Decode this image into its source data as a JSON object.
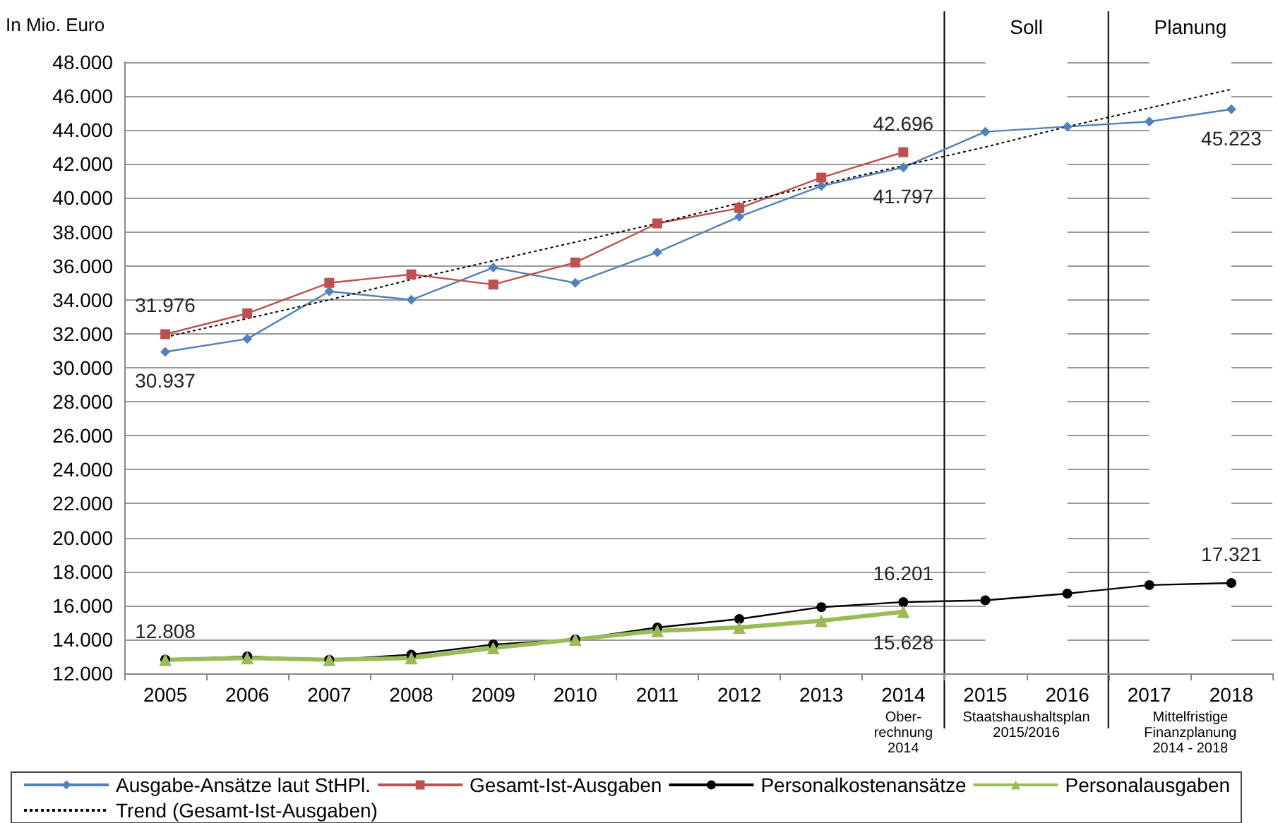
{
  "chart_data": {
    "type": "line",
    "ylabel": "In Mio. Euro",
    "categories": [
      "2005",
      "2006",
      "2007",
      "2008",
      "2009",
      "2010",
      "2011",
      "2012",
      "2013",
      "2014",
      "2015",
      "2016",
      "2017",
      "2018"
    ],
    "series": [
      {
        "name": "Ausgabe-Ansätze laut StHPl.",
        "color": "#4f81bd",
        "marker": "diamond",
        "values": [
          30937,
          31700,
          34500,
          34000,
          35900,
          35000,
          36800,
          38900,
          40700,
          41797,
          43900,
          44200,
          44500,
          45223
        ],
        "value_labels": [
          "30.937",
          null,
          null,
          null,
          null,
          null,
          null,
          null,
          null,
          "41.797",
          null,
          null,
          null,
          "45.223"
        ]
      },
      {
        "name": "Gesamt-Ist-Ausgaben",
        "color": "#c0504d",
        "marker": "square",
        "values": [
          31976,
          33200,
          35000,
          35500,
          34900,
          36200,
          38500,
          39400,
          41200,
          42696,
          null,
          null,
          null,
          null
        ],
        "value_labels": [
          "31.976",
          null,
          null,
          null,
          null,
          null,
          null,
          null,
          null,
          "42.696",
          null,
          null,
          null,
          null
        ]
      },
      {
        "name": "Personalkostenansätze",
        "color": "#000000",
        "marker": "circle",
        "values": [
          12808,
          13000,
          12800,
          13100,
          13700,
          14000,
          14700,
          15200,
          15900,
          16201,
          16300,
          16700,
          17200,
          17321
        ],
        "value_labels": [
          "12.808",
          null,
          null,
          null,
          null,
          null,
          null,
          null,
          null,
          "16.201",
          null,
          null,
          null,
          "17.321"
        ]
      },
      {
        "name": "Personalausgaben",
        "color": "#9bbb59",
        "marker": "triangle",
        "values": [
          12800,
          12900,
          12800,
          12900,
          13500,
          14000,
          14500,
          14700,
          15100,
          15628,
          null,
          null,
          null,
          null
        ],
        "value_labels": [
          null,
          null,
          null,
          null,
          null,
          null,
          null,
          null,
          null,
          "15.628",
          null,
          null,
          null,
          null
        ]
      },
      {
        "name": "Trend (Gesamt-Ist-Ausgaben)",
        "color": "#000000",
        "marker": "none",
        "line_style": "dotted",
        "values": [
          31800,
          32900,
          34000,
          35200,
          36300,
          37400,
          38500,
          39700,
          40800,
          41900,
          43000,
          44200,
          45300,
          46400
        ]
      }
    ],
    "ylim": [
      12000,
      48000
    ],
    "yticks": [
      {
        "value": 12000,
        "label": "12.000"
      },
      {
        "value": 14000,
        "label": "14.000"
      },
      {
        "value": 16000,
        "label": "16.000"
      },
      {
        "value": 18000,
        "label": "18.000"
      },
      {
        "value": 20000,
        "label": "20.000"
      },
      {
        "value": 22000,
        "label": "22.000"
      },
      {
        "value": 24000,
        "label": "24.000"
      },
      {
        "value": 26000,
        "label": "26.000"
      },
      {
        "value": 28000,
        "label": "28.000"
      },
      {
        "value": 30000,
        "label": "30.000"
      },
      {
        "value": 32000,
        "label": "32.000"
      },
      {
        "value": 34000,
        "label": "34.000"
      },
      {
        "value": 36000,
        "label": "36.000"
      },
      {
        "value": 38000,
        "label": "38.000"
      },
      {
        "value": 40000,
        "label": "40.000"
      },
      {
        "value": 42000,
        "label": "42.000"
      },
      {
        "value": 44000,
        "label": "44.000"
      },
      {
        "value": 46000,
        "label": "46.000"
      },
      {
        "value": 48000,
        "label": "48.000"
      }
    ],
    "bands": [
      {
        "axis": "x",
        "from": "2015",
        "to": "2016",
        "label": "Soll",
        "color": "#ffffff"
      },
      {
        "axis": "x",
        "from": "2017",
        "to": "2018",
        "label": "Planung",
        "color": "#ffffff"
      }
    ],
    "annotations": [
      "Ober-\nrechnung\n2014",
      "Staatshaushaltsplan\n2015/2016",
      "Mittelfristige\nFinanzplanung\n2014 - 2018"
    ],
    "grid": "y",
    "legend": "bottom"
  }
}
